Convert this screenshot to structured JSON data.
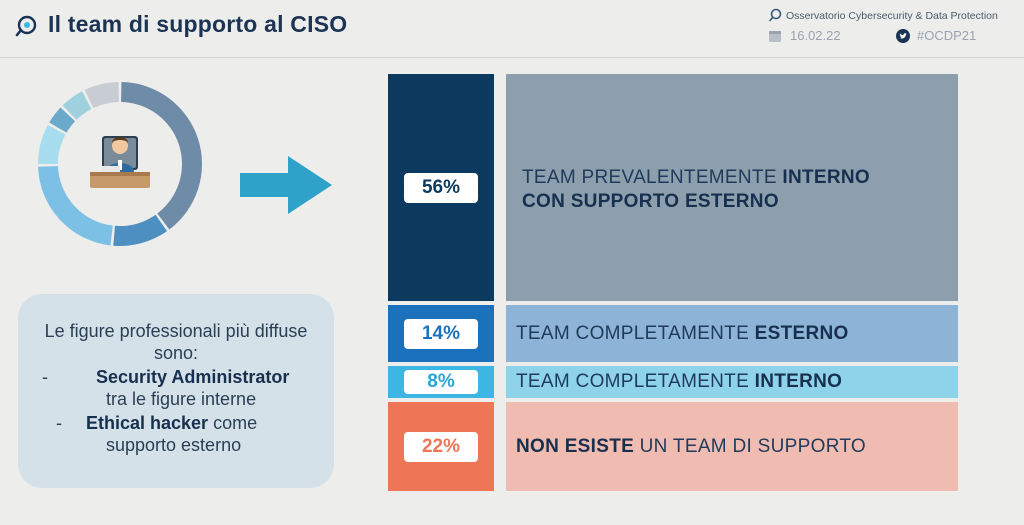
{
  "header": {
    "title": "Il team di supporto al CISO",
    "organization": "Osservatorio Cybersecurity & Data Protection",
    "date": "16.02.22",
    "hashtag": "#OCDP21"
  },
  "info_box": {
    "intro": "Le figure professionali più diffuse sono:",
    "items": [
      {
        "dash": "-",
        "strong": "Security Administrator",
        "rest": "tra le figure interne"
      },
      {
        "dash": "-",
        "strong": "Ethical hacker",
        "rest_inline": "come",
        "rest": "supporto esterno"
      }
    ]
  },
  "chart_data": {
    "type": "bar",
    "orientation": "stacked-vertical",
    "categories": [
      "TEAM PREVALENTEMENTE INTERNO CON SUPPORTO ESTERNO",
      "TEAM COMPLETAMENTE ESTERNO",
      "TEAM COMPLETAMENTE INTERNO",
      "NON ESISTE UN TEAM DI SUPPORTO"
    ],
    "values": [
      56,
      14,
      8,
      22
    ],
    "value_labels": [
      "56%",
      "14%",
      "8%",
      "22%"
    ],
    "labels": [
      {
        "l1a": "TEAM PREVALENTEMENTE ",
        "l1b": "INTERNO",
        "l2a": "",
        "l2b": "CON SUPPORTO ESTERNO"
      },
      {
        "l1a": "TEAM COMPLETAMENTE ",
        "l1b": "ESTERNO"
      },
      {
        "l1a": "TEAM COMPLETAMENTE ",
        "l1b": "INTERNO"
      },
      {
        "l1b": "NON ESISTE",
        "l1a": " UN TEAM DI SUPPORTO"
      }
    ],
    "colors": {
      "left": [
        "#0b3a5e",
        "#1c71bd",
        "#3eb6e3",
        "#ee7656"
      ],
      "right": [
        "#8d9fad",
        "#8db4d6",
        "#8ed3ea",
        "#f0bcb1"
      ],
      "pct_text": [
        "#0b3a5e",
        "#1c71bd",
        "#2aa6d6",
        "#ee7656"
      ]
    }
  },
  "donut": {
    "values": [
      38,
      11,
      22,
      8,
      4,
      5,
      7
    ],
    "colors": [
      "#6e8ba8",
      "#4e8fc2",
      "#7cc0e6",
      "#a8dcef",
      "#6aa9c9",
      "#9fd0de",
      "#c7cdd2"
    ]
  }
}
